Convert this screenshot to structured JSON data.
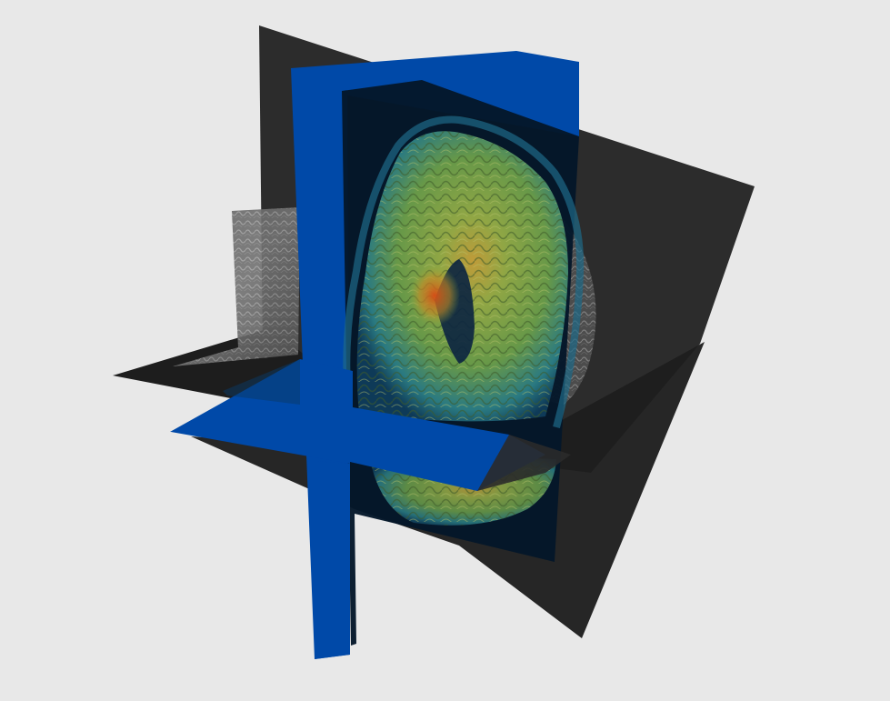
{
  "scene": {
    "background_color": "#e8e8e8",
    "colors": {
      "slice_plane_dark": "#1f1f1f",
      "slice_plane_blue": "#0049a8",
      "overlay_dark_navy": "#04172a",
      "overlay_green": "#7ea64a",
      "overlay_teal": "#2f8f95",
      "overlay_hot_orange": "#d2661c",
      "grayscale_tissue": "#9a9a9a"
    },
    "icons": [
      "mri-volume-3d-view"
    ]
  }
}
